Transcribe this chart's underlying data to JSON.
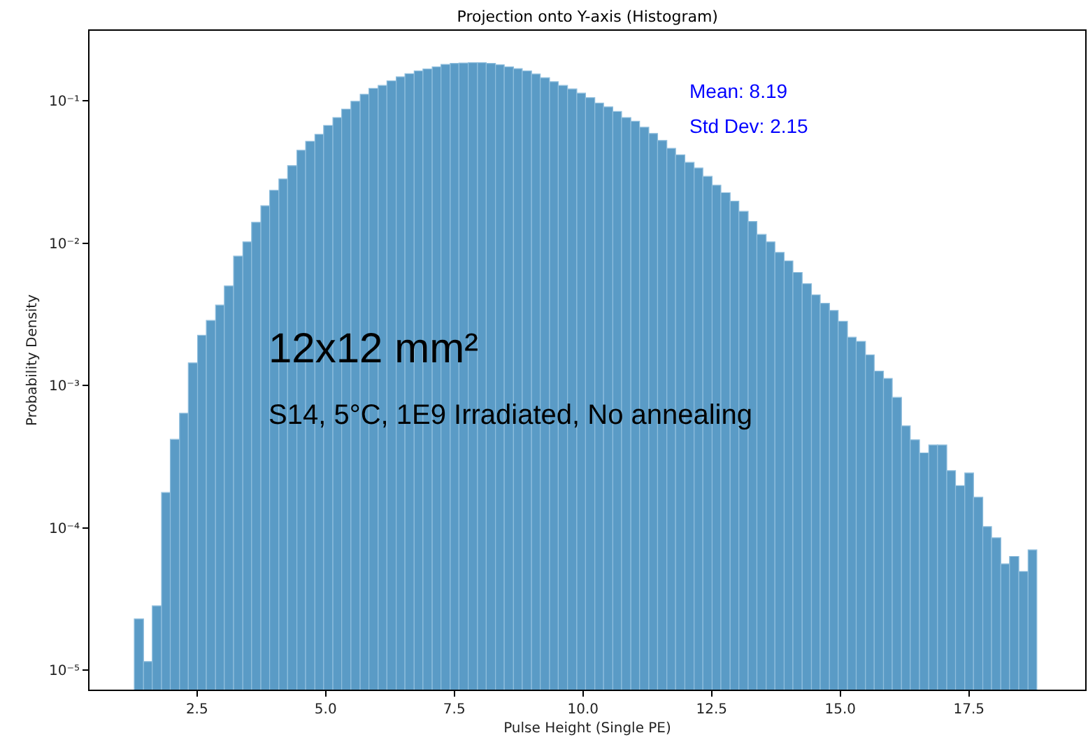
{
  "chart_data": {
    "type": "histogram",
    "title": "Projection onto Y-axis (Histogram)",
    "xlabel": "Pulse Height (Single PE)",
    "ylabel": "Probability Density",
    "annotations": [
      "Mean: 8.19",
      "Std Dev: 2.15",
      "12x12 mm²",
      "S14, 5°C, 1E9 Irradiated, No annealing"
    ],
    "bins": [
      1.28,
      1.46,
      1.63,
      1.81,
      1.98,
      2.16,
      2.33,
      2.51,
      2.68,
      2.86,
      3.03,
      3.21,
      3.39,
      3.56,
      3.74,
      3.91,
      4.09,
      4.26,
      4.44,
      4.61,
      4.79,
      4.96,
      5.14,
      5.31,
      5.49,
      5.67,
      5.84,
      6.02,
      6.19,
      6.37,
      6.54,
      6.72,
      6.89,
      7.07,
      7.24,
      7.42,
      7.59,
      7.77,
      7.95,
      8.12,
      8.3,
      8.47,
      8.65,
      8.82,
      9.0,
      9.17,
      9.35,
      9.52,
      9.7,
      9.88,
      10.05,
      10.23,
      10.4,
      10.58,
      10.75,
      10.93,
      11.1,
      11.28,
      11.45,
      11.63,
      11.8,
      11.98,
      12.16,
      12.33,
      12.51,
      12.68,
      12.86,
      13.03,
      13.21,
      13.38,
      13.56,
      13.73,
      13.91,
      14.08,
      14.26,
      14.44,
      14.61,
      14.79,
      14.96,
      15.14,
      15.31,
      15.49,
      15.66,
      15.84,
      16.01,
      16.19,
      16.36,
      16.54,
      16.72,
      16.89,
      17.07,
      17.24,
      17.42,
      17.59,
      17.77,
      17.94,
      18.12,
      18.29,
      18.47,
      18.65,
      18.82
    ],
    "values": [
      2.29e-05,
      1.15e-05,
      2.83e-05,
      0.000177,
      0.000418,
      0.000638,
      0.00144,
      0.00225,
      0.00286,
      0.00367,
      0.005,
      0.0081,
      0.0102,
      0.014,
      0.0183,
      0.0235,
      0.0282,
      0.035,
      0.0449,
      0.0519,
      0.0581,
      0.067,
      0.0762,
      0.0873,
      0.0991,
      0.111,
      0.122,
      0.128,
      0.138,
      0.147,
      0.155,
      0.162,
      0.167,
      0.173,
      0.18,
      0.183,
      0.184,
      0.185,
      0.185,
      0.183,
      0.179,
      0.173,
      0.168,
      0.162,
      0.154,
      0.145,
      0.136,
      0.128,
      0.121,
      0.113,
      0.105,
      0.0962,
      0.0905,
      0.084,
      0.0762,
      0.0717,
      0.0651,
      0.0589,
      0.0526,
      0.0463,
      0.0417,
      0.0369,
      0.0337,
      0.0294,
      0.0255,
      0.0226,
      0.0197,
      0.0167,
      0.0142,
      0.0115,
      0.0102,
      0.0086,
      0.0075,
      0.00622,
      0.00519,
      0.00433,
      0.00378,
      0.00336,
      0.00282,
      0.00218,
      0.00204,
      0.00164,
      0.00126,
      0.00112,
      0.000824,
      0.00052,
      0.000415,
      0.000336,
      0.000382,
      0.000382,
      0.000252,
      0.000198,
      0.000243,
      0.000164,
      0.000102,
      8.51e-05,
      5.58e-05,
      6.3e-05,
      4.94e-05,
      7e-05
    ],
    "color": "#5a9bc6",
    "log": true,
    "grid": false,
    "legend": false,
    "xlim": [
      0.41,
      19.76
    ],
    "xticks": [
      2.5,
      {
        "value": 5,
        "label": "5.0"
      },
      7.5,
      {
        "value": 10,
        "label": "10.0"
      },
      12.5,
      {
        "value": 15,
        "label": "15.0"
      },
      17.5
    ],
    "ylim": [
      7.3e-06,
      0.31
    ],
    "yticks": [
      {
        "value": 1e-05,
        "label": "10⁻⁵"
      },
      {
        "value": 0.0001,
        "label": "10⁻⁴"
      },
      {
        "value": 0.001,
        "label": "10⁻³"
      },
      {
        "value": 0.01,
        "label": "10⁻²"
      },
      {
        "value": 0.1,
        "label": "10⁻¹"
      }
    ]
  }
}
